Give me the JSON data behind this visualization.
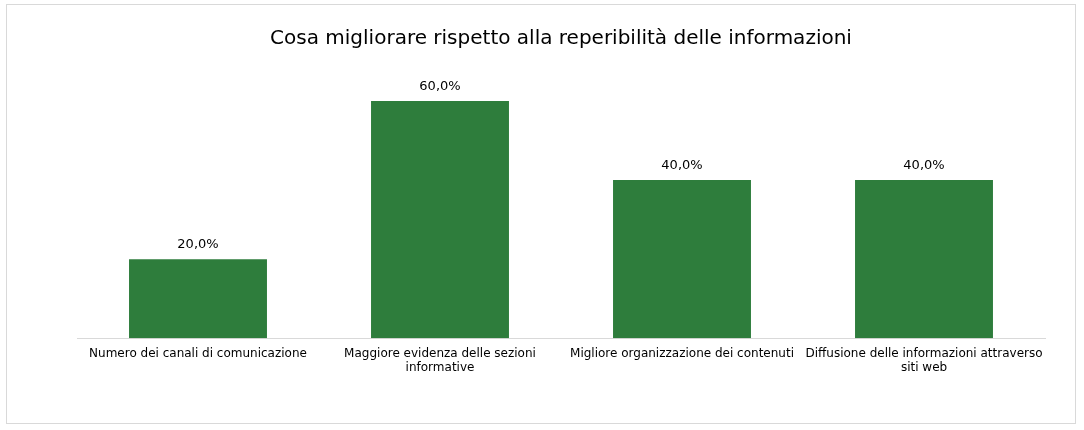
{
  "chart_data": {
    "type": "bar",
    "title": "Cosa migliorare rispetto alla reperibilità delle informazioni",
    "categories": [
      "Numero dei canali di comunicazione",
      "Maggiore evidenza delle sezioni informative",
      "Migliore organizzazione dei contenuti",
      "Diffusione delle informazioni attraverso siti web"
    ],
    "values": [
      20,
      60,
      40,
      40
    ],
    "value_labels": [
      "20,0%",
      "60,0%",
      "40,0%",
      "40,0%"
    ],
    "color": "#2e7d3c",
    "legend": false
  }
}
